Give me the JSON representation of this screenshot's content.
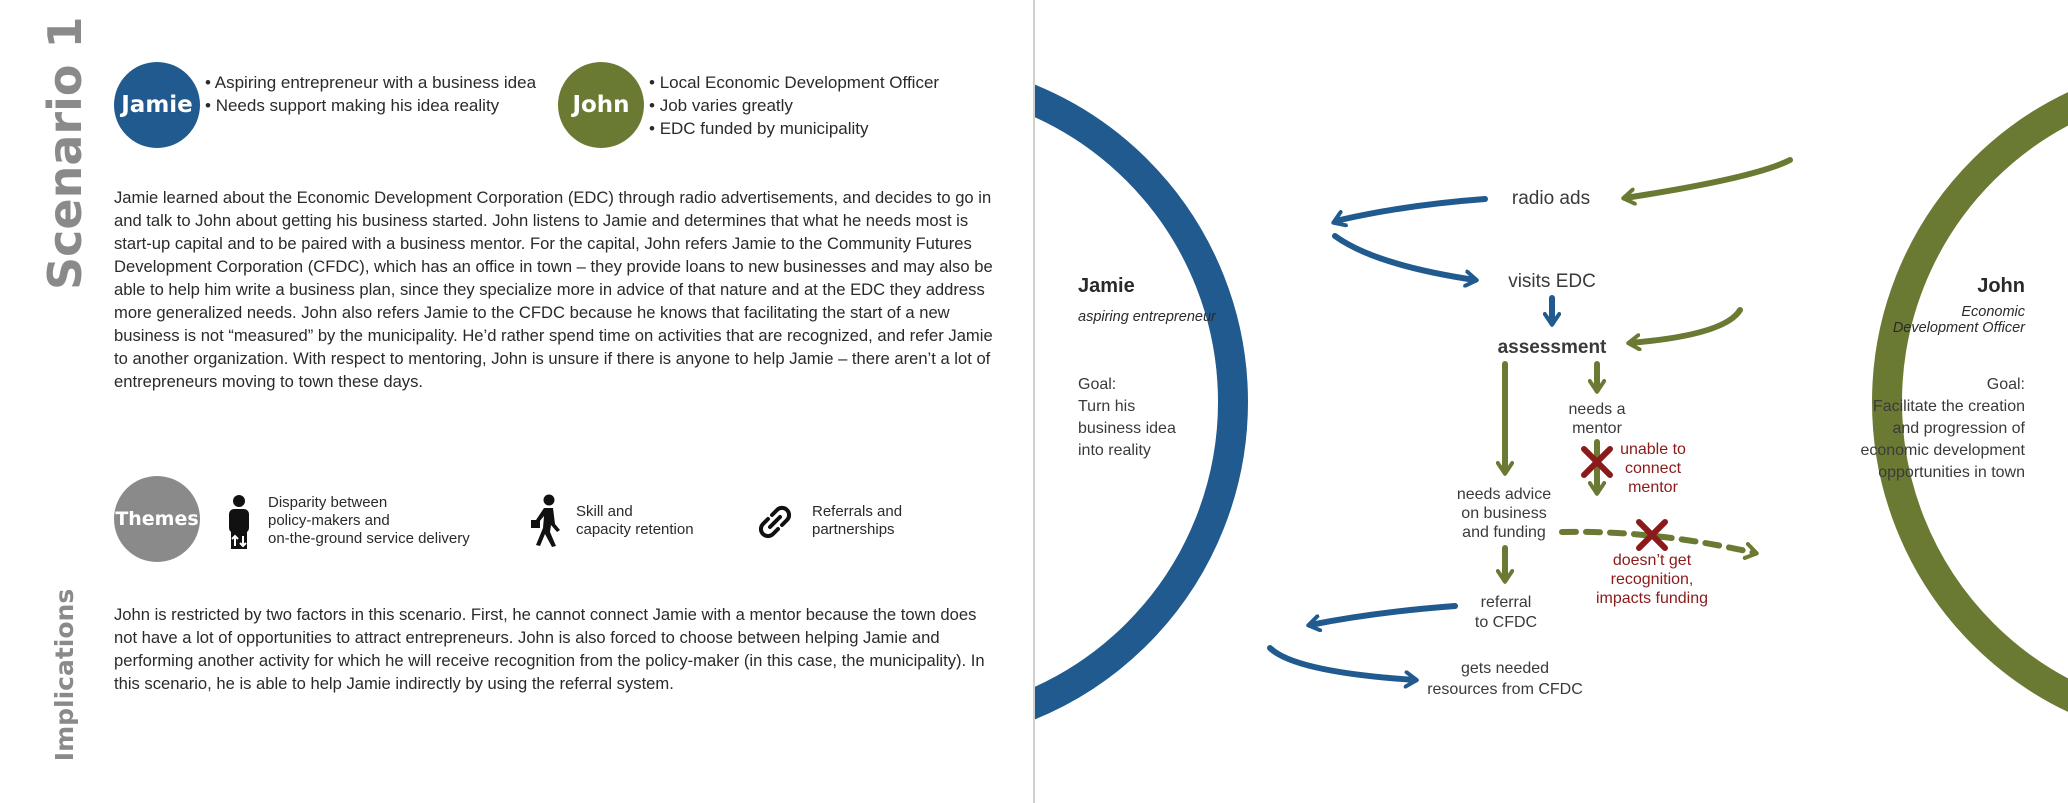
{
  "scenario_title": "Scenario 1",
  "implications_title": "Implications",
  "personas": [
    {
      "name": "Jamie",
      "color": "#215a8e",
      "bullets": [
        "Aspiring entrepreneur with a business idea",
        "Needs support making his idea reality"
      ]
    },
    {
      "name": "John",
      "color": "#6b7a33",
      "bullets": [
        "Local Economic Development Officer",
        "Job varies greatly",
        "EDC funded by municipality"
      ]
    }
  ],
  "story": "Jamie learned about the Economic Development Corporation (EDC) through radio advertisements, and decides to go in and talk to John about getting his business started. John listens to Jamie and determines that what he needs most is start-up capital and to be paired with a business mentor. For the capital, John refers Jamie to the Community Futures Development Corporation (CFDC), which has an office in town – they provide loans to new businesses and may also be able to help him write a business plan, since they specialize more in advice of that nature and at the EDC they address more generalized needs. John also refers Jamie to the CFDC because he knows that facilitating the start of a new business is not “measured” by the municipality. He’d rather spend time on activities that are recognized, and refer Jamie to another organization. With respect to mentoring, John is unsure if there is anyone to help Jamie – there aren’t a lot of entrepreneurs moving to town these days.",
  "themes": {
    "label": "Themes",
    "items": [
      {
        "icon": "person-updown-icon",
        "text": "Disparity between\npolicy-makers and\non-the-ground service delivery"
      },
      {
        "icon": "walking-person-icon",
        "text": "Skill and\ncapacity retention"
      },
      {
        "icon": "chain-link-icon",
        "text": "Referrals and\npartnerships"
      }
    ]
  },
  "implications": "John is restricted by two factors in this scenario. First, he cannot connect Jamie with a mentor because the town does not have a lot of opportunities to attract entrepreneurs. John is also forced to choose between helping Jamie and performing another activity for which he will receive recognition from the policy-maker (in this case, the municipality). In this scenario, he is able to help Jamie indirectly by using the referral system.",
  "diagram": {
    "jamie": {
      "name": "Jamie",
      "role": "aspiring entrepreneur",
      "goal_label": "Goal:",
      "goal_lines": [
        "Turn his",
        "business idea",
        "into reality"
      ]
    },
    "john": {
      "name": "John",
      "role_lines": [
        "Economic",
        "Development Officer"
      ],
      "goal_label": "Goal:",
      "goal_lines": [
        "Facilitate the creation",
        "and progression of",
        "economic development",
        "opportunities in town"
      ]
    },
    "steps": {
      "radio_ads": "radio ads",
      "visits_edc": "visits EDC",
      "assessment": "assessment",
      "needs_mentor": [
        "needs a",
        "mentor"
      ],
      "unable_connect": [
        "unable to",
        "connect",
        "mentor"
      ],
      "needs_advice": [
        "needs advice",
        "on business",
        "and funding"
      ],
      "no_recognition": [
        "doesn’t get",
        "recognition,",
        "impacts funding"
      ],
      "referral": [
        "referral",
        "to CFDC"
      ],
      "resources": [
        "gets needed",
        "resources from CFDC"
      ]
    },
    "colors": {
      "blue": "#215a8e",
      "olive": "#6b7a33",
      "red": "#8b1a1a",
      "text": "#3a3a3a"
    }
  }
}
